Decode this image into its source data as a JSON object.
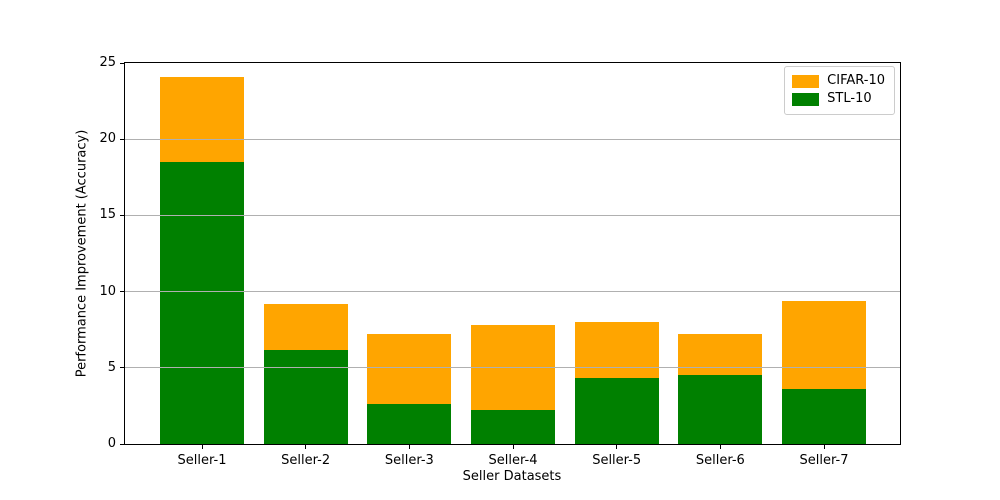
{
  "figure": {
    "background_color": "#ffffff",
    "axis_color": "#000000"
  },
  "chart_data": {
    "type": "bar",
    "stacked": true,
    "title": "",
    "xlabel": "Seller Datasets",
    "ylabel": "Performance Improvement (Accuracy)",
    "categories": [
      "Seller-1",
      "Seller-2",
      "Seller-3",
      "Seller-4",
      "Seller-5",
      "Seller-6",
      "Seller-7"
    ],
    "series": [
      {
        "name": "STL-10",
        "color": "#008000",
        "values": [
          18.5,
          6.2,
          2.6,
          2.2,
          4.3,
          4.5,
          3.6
        ]
      },
      {
        "name": "CIFAR-10",
        "color": "#FFA500",
        "values": [
          5.6,
          3.0,
          4.6,
          5.6,
          3.7,
          2.7,
          5.8
        ]
      }
    ],
    "totals": [
      24.1,
      9.2,
      7.2,
      7.8,
      8.0,
      7.2,
      9.4
    ],
    "ylim": [
      0,
      25
    ],
    "yticks": [
      0,
      5,
      10,
      15,
      20,
      25
    ],
    "grid": "horizontal",
    "grid_color": "#b0b0b0",
    "legend": {
      "position": "upper-right",
      "entries": [
        {
          "label": "CIFAR-10",
          "color": "#FFA500"
        },
        {
          "label": "STL-10",
          "color": "#008000"
        }
      ]
    }
  }
}
